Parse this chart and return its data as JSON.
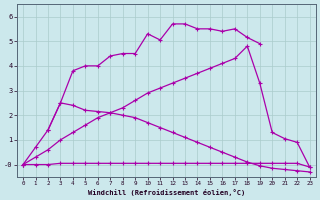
{
  "xlabel": "Windchill (Refroidissement éolien,°C)",
  "background_color": "#cce8ec",
  "grid_color": "#aacccc",
  "line_color": "#aa00aa",
  "xlim": [
    -0.5,
    23.5
  ],
  "ylim": [
    -0.5,
    6.5
  ],
  "ytick_values": [
    0,
    1,
    2,
    3,
    4,
    5,
    6
  ],
  "ytick_labels": [
    "-0",
    "1",
    "2",
    "3",
    "4",
    "5",
    "6"
  ],
  "line1_x": [
    0,
    1,
    2,
    3,
    4,
    5,
    6,
    7,
    8,
    9,
    10,
    11,
    12,
    13,
    14,
    15,
    16,
    17,
    18,
    19,
    20,
    21,
    22,
    23
  ],
  "line1_y": [
    0.0,
    0.0,
    0.0,
    0.05,
    0.05,
    0.05,
    0.05,
    0.05,
    0.05,
    0.05,
    0.05,
    0.05,
    0.05,
    0.05,
    0.05,
    0.05,
    0.05,
    0.05,
    0.05,
    0.05,
    0.05,
    0.05,
    0.05,
    -0.1
  ],
  "line2_x": [
    0,
    1,
    2,
    3,
    4,
    5,
    6,
    7,
    8,
    9,
    10,
    11,
    12,
    13,
    14,
    15,
    16,
    17,
    18,
    19,
    20,
    21,
    22,
    23
  ],
  "line2_y": [
    0.0,
    0.7,
    1.4,
    2.5,
    2.4,
    2.2,
    2.15,
    2.1,
    2.0,
    1.9,
    1.7,
    1.5,
    1.3,
    1.1,
    0.9,
    0.7,
    0.5,
    0.3,
    0.1,
    -0.05,
    -0.15,
    -0.2,
    -0.25,
    -0.3
  ],
  "line3_x": [
    0,
    1,
    2,
    3,
    4,
    5,
    6,
    7,
    8,
    9,
    10,
    11,
    12,
    13,
    14,
    15,
    16,
    17,
    18,
    19,
    20,
    21,
    22,
    23
  ],
  "line3_y": [
    0.0,
    0.3,
    0.6,
    1.0,
    1.3,
    1.6,
    1.9,
    2.1,
    2.3,
    2.6,
    2.9,
    3.1,
    3.3,
    3.5,
    3.7,
    3.9,
    4.1,
    4.3,
    4.8,
    3.3,
    1.3,
    1.05,
    0.9,
    -0.1
  ],
  "line4_x": [
    2,
    3,
    4,
    5,
    6,
    7,
    8,
    9,
    10,
    11,
    12,
    13,
    14,
    15,
    16,
    17,
    18,
    19
  ],
  "line4_y": [
    1.4,
    2.5,
    3.8,
    4.0,
    4.0,
    4.4,
    4.5,
    4.5,
    5.3,
    5.05,
    5.7,
    5.7,
    5.5,
    5.5,
    5.4,
    5.5,
    5.15,
    4.9
  ]
}
